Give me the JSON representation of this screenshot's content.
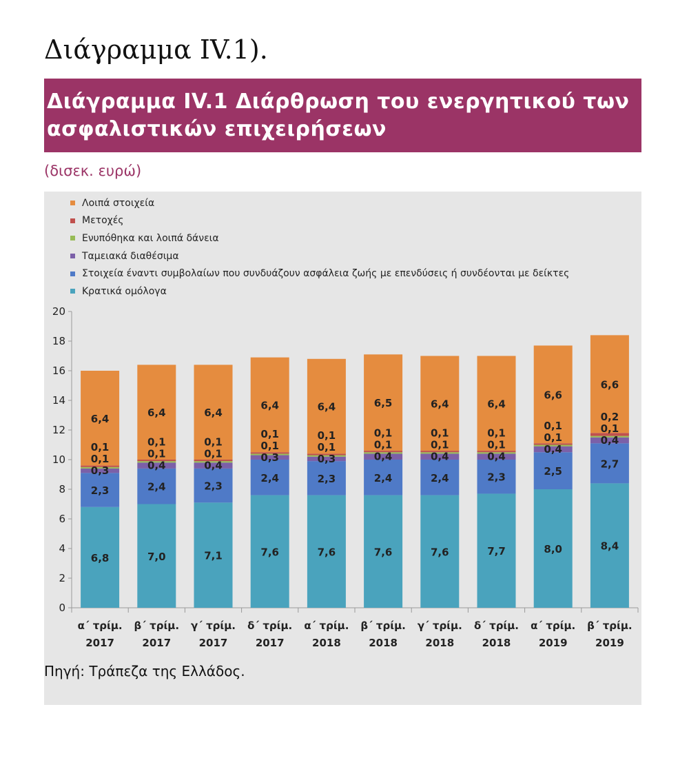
{
  "page": {
    "heading": "Διάγραμμα IV.1).",
    "figure_title": "Διάγραμμα IV.1 Διάρθρωση του ενεργητικού των ασφαλιστικών επιχειρήσεων",
    "unit": "(δισεκ. ευρώ)",
    "source": "Πηγή: Τράπεζα της Ελλάδος."
  },
  "chart_data": {
    "type": "bar",
    "stacked": true,
    "title": "Διάγραμμα IV.1 Διάρθρωση του ενεργητικού των ασφαλιστικών επιχειρήσεων",
    "ylabel": "(δισεκ. ευρώ)",
    "xlabel": "",
    "ylim": [
      0,
      20
    ],
    "yticks": [
      0,
      2,
      4,
      6,
      8,
      10,
      12,
      14,
      16,
      18,
      20
    ],
    "grid": false,
    "legend_position": "top-left",
    "categories": [
      [
        "α΄ τρίμ.",
        "2017"
      ],
      [
        "β΄ τρίμ.",
        "2017"
      ],
      [
        "γ΄ τρίμ.",
        "2017"
      ],
      [
        "δ΄ τρίμ.",
        "2017"
      ],
      [
        "α΄ τρίμ.",
        "2018"
      ],
      [
        "β΄ τρίμ.",
        "2018"
      ],
      [
        "γ΄ τρίμ.",
        "2018"
      ],
      [
        "δ΄ τρίμ.",
        "2018"
      ],
      [
        "α΄ τρίμ.",
        "2019"
      ],
      [
        "β΄ τρίμ.",
        "2019"
      ]
    ],
    "series": [
      {
        "name": "Κρατικά ομόλογα",
        "color": "#4aa3bd",
        "values": [
          6.8,
          7.0,
          7.1,
          7.6,
          7.6,
          7.6,
          7.6,
          7.7,
          8.0,
          8.4
        ],
        "labels": [
          "6,8",
          "7,0",
          "7,1",
          "7,6",
          "7,6",
          "7,6",
          "7,6",
          "7,7",
          "8,0",
          "8,4"
        ]
      },
      {
        "name": "Στοιχεία έναντι συμβολαίων που συνδυάζουν ασφάλεια ζωής με επενδύσεις ή συνδέονται με δείκτες",
        "color": "#4f7ac7",
        "values": [
          2.3,
          2.4,
          2.3,
          2.4,
          2.3,
          2.4,
          2.4,
          2.3,
          2.5,
          2.7
        ],
        "labels": [
          "2,3",
          "2,4",
          "2,3",
          "2,4",
          "2,3",
          "2,4",
          "2,4",
          "2,3",
          "2,5",
          "2,7"
        ]
      },
      {
        "name": "Ταμειακά διαθέσιμα",
        "color": "#7b60a8",
        "values": [
          0.3,
          0.4,
          0.4,
          0.3,
          0.3,
          0.4,
          0.4,
          0.4,
          0.4,
          0.4
        ],
        "labels": [
          "0,3",
          "0,4",
          "0,4",
          "0,3",
          "0,3",
          "0,4",
          "0,4",
          "0,4",
          "0,4",
          "0,4"
        ]
      },
      {
        "name": "Ενυπόθηκα και λοιπά δάνεια",
        "color": "#97bb56",
        "values": [
          0.1,
          0.1,
          0.1,
          0.1,
          0.1,
          0.1,
          0.1,
          0.1,
          0.1,
          0.1
        ],
        "labels": [
          "0,1",
          "0,1",
          "0,1",
          "0,1",
          "0,1",
          "0,1",
          "0,1",
          "0,1",
          "0,1",
          "0,1"
        ]
      },
      {
        "name": "Μετοχές",
        "color": "#c0504d",
        "values": [
          0.1,
          0.1,
          0.1,
          0.1,
          0.1,
          0.1,
          0.1,
          0.1,
          0.1,
          0.2
        ],
        "labels": [
          "0,1",
          "0,1",
          "0,1",
          "0,1",
          "0,1",
          "0,1",
          "0,1",
          "0,1",
          "0,1",
          "0,2"
        ]
      },
      {
        "name": "Λοιπά στοιχεία",
        "color": "#e58c3f",
        "values": [
          6.4,
          6.4,
          6.4,
          6.4,
          6.4,
          6.5,
          6.4,
          6.4,
          6.6,
          6.6
        ],
        "labels": [
          "6,4",
          "6,4",
          "6,4",
          "6,4",
          "6,4",
          "6,5",
          "6,4",
          "6,4",
          "6,6",
          "6,6"
        ]
      }
    ]
  }
}
